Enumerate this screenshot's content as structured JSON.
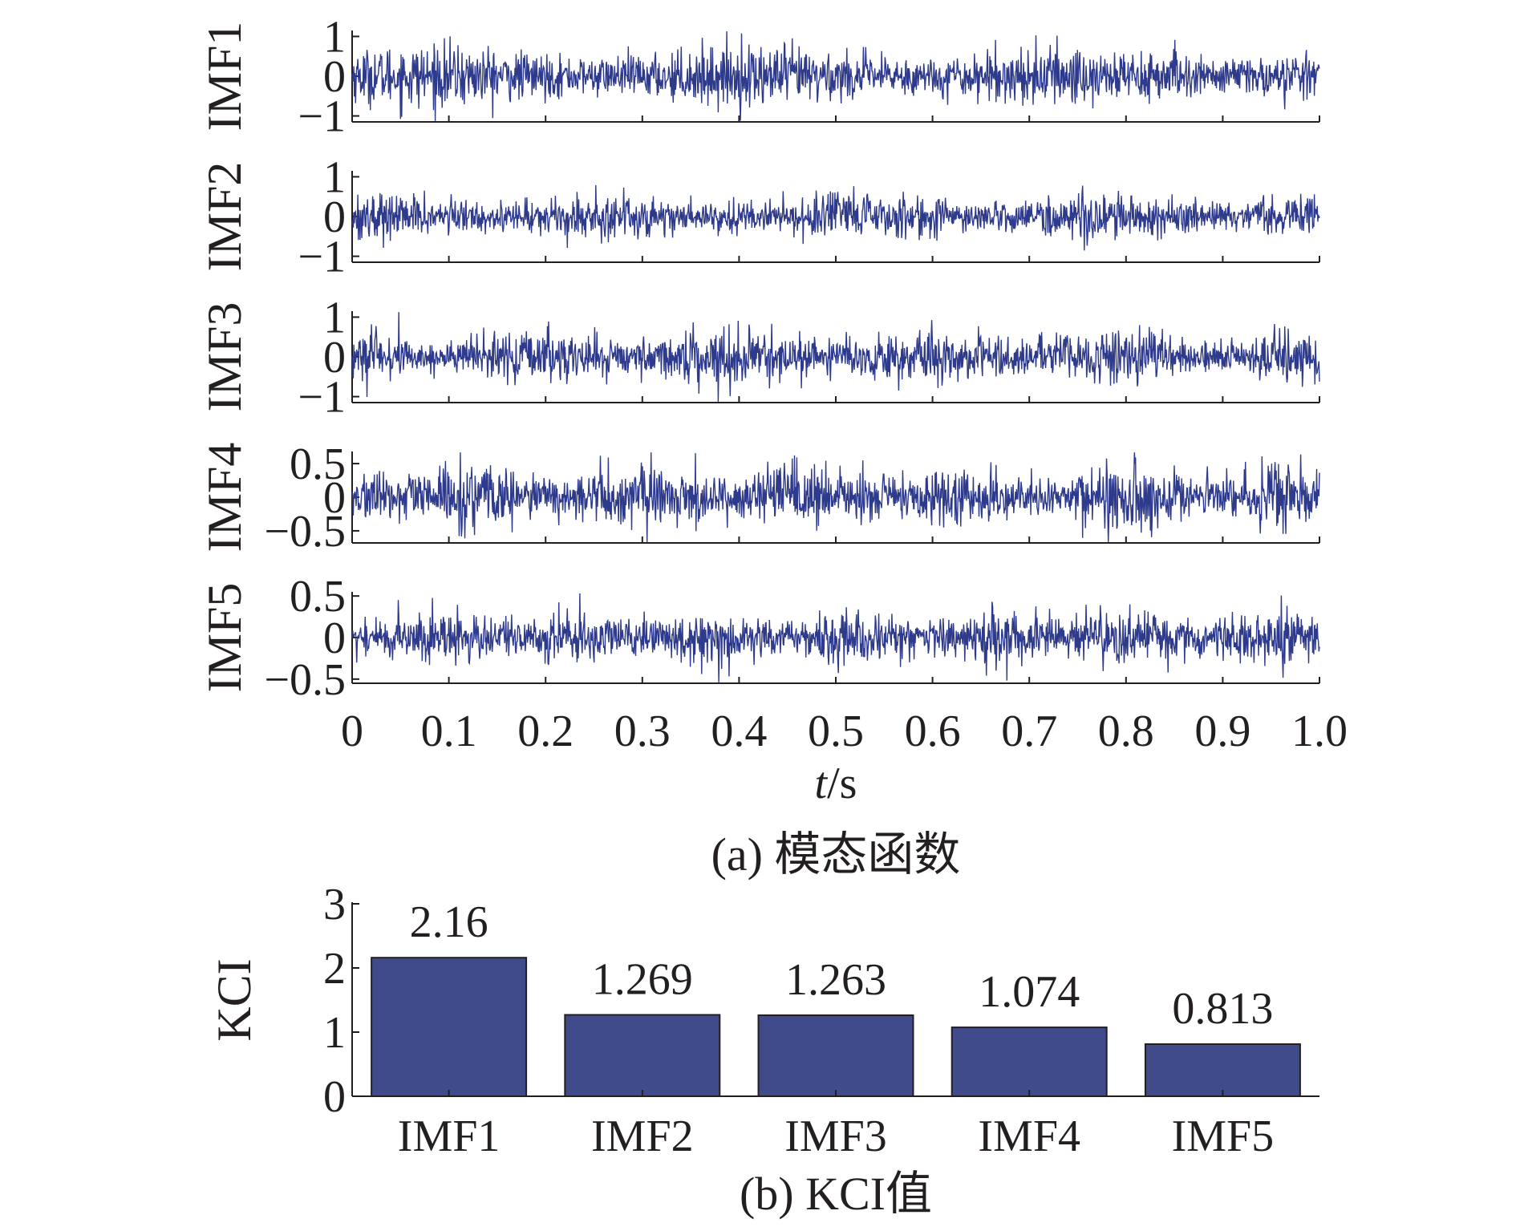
{
  "chart_data": [
    {
      "type": "line",
      "caption": "(a) 模态函数",
      "xlabel_italic": "t",
      "xlabel_unit": "/s",
      "xlim": [
        0,
        1.0
      ],
      "xticks": [
        "0",
        "0.1",
        "0.2",
        "0.3",
        "0.4",
        "0.5",
        "0.6",
        "0.7",
        "0.8",
        "0.9",
        "1.0"
      ],
      "line_color": "#2e3a8c",
      "panels": [
        {
          "ylabel": "IMF1",
          "ylim": [
            -1.15,
            1.15
          ],
          "yticks": [
            {
              "v": 1,
              "t": "1"
            },
            {
              "v": 0,
              "t": "0"
            },
            {
              "v": -1,
              "t": "−1"
            }
          ],
          "amplitude": 0.95
        },
        {
          "ylabel": "IMF2",
          "ylim": [
            -1.15,
            1.15
          ],
          "yticks": [
            {
              "v": 1,
              "t": "1"
            },
            {
              "v": 0,
              "t": "0"
            },
            {
              "v": -1,
              "t": "−1"
            }
          ],
          "amplitude": 0.72
        },
        {
          "ylabel": "IMF3",
          "ylim": [
            -1.15,
            1.15
          ],
          "yticks": [
            {
              "v": 1,
              "t": "1"
            },
            {
              "v": 0,
              "t": "0"
            },
            {
              "v": -1,
              "t": "−1"
            }
          ],
          "amplitude": 0.85
        },
        {
          "ylabel": "IMF4",
          "ylim": [
            -0.68,
            0.68
          ],
          "yticks": [
            {
              "v": 0.5,
              "t": "0.5"
            },
            {
              "v": 0,
              "t": "0"
            },
            {
              "v": -0.5,
              "t": "−0.5"
            }
          ],
          "amplitude": 0.62
        },
        {
          "ylabel": "IMF5",
          "ylim": [
            -0.55,
            0.55
          ],
          "yticks": [
            {
              "v": 0.5,
              "t": "0.5"
            },
            {
              "v": 0,
              "t": "0"
            },
            {
              "v": -0.5,
              "t": "−0.5"
            }
          ],
          "amplitude": 0.42
        }
      ]
    },
    {
      "type": "bar",
      "caption": "(b) KCI值",
      "ylabel": "KCI",
      "categories": [
        "IMF1",
        "IMF2",
        "IMF3",
        "IMF4",
        "IMF5"
      ],
      "values": [
        2.16,
        1.269,
        1.263,
        1.074,
        0.813
      ],
      "value_labels": [
        "2.16",
        "1.269",
        "1.263",
        "1.074",
        "0.813"
      ],
      "ylim": [
        0,
        3
      ],
      "yticks": [
        "0",
        "1",
        "2",
        "3"
      ],
      "bar_color": "#404b8c"
    }
  ]
}
